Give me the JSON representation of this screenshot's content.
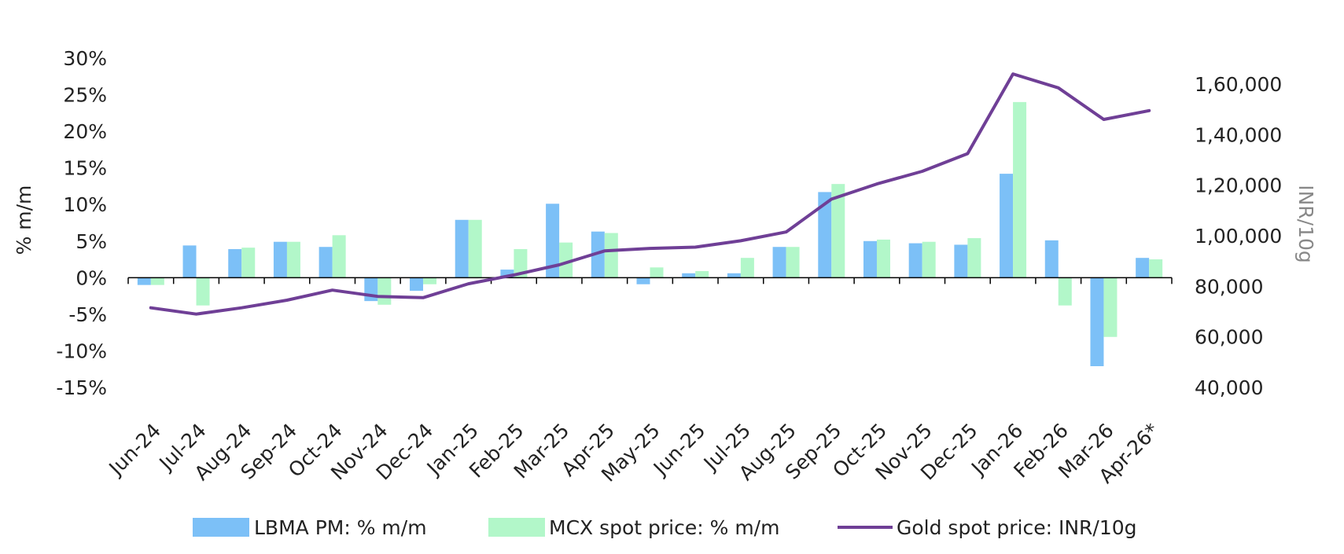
{
  "chart_data": {
    "type": "bar",
    "title": "",
    "categories": [
      "Jun-24",
      "Jul-24",
      "Aug-24",
      "Sep-24",
      "Oct-24",
      "Nov-24",
      "Dec-24",
      "Jan-25",
      "Feb-25",
      "Mar-25",
      "Apr-25",
      "May-25",
      "Jun-25",
      "Jul-25",
      "Aug-25",
      "Sep-25",
      "Oct-25",
      "Nov-25",
      "Dec-25",
      "Jan-26",
      "Feb-26",
      "Mar-26",
      "Apr-26*"
    ],
    "ylabel": "% m/m",
    "y2label": "INR/10g",
    "ylim": [
      -15,
      30
    ],
    "y2lim": [
      40000,
      170000
    ],
    "y_ticks": [
      "30%",
      "25%",
      "20%",
      "15%",
      "10%",
      "5%",
      "0%",
      "-5%",
      "-10%",
      "-15%"
    ],
    "y2_ticks": [
      "1,60,000",
      "1,40,000",
      "1,20,000",
      "1,00,000",
      "80,000",
      "60,000",
      "40,000"
    ],
    "grid": false,
    "legend_position": "bottom",
    "series": [
      {
        "name": "LBMA PM: % m/m",
        "type": "bar",
        "axis": "left",
        "color": "#7cc0f7",
        "values": [
          -1.0,
          4.4,
          3.9,
          4.9,
          4.2,
          -3.2,
          -1.8,
          7.9,
          1.1,
          10.1,
          6.3,
          -0.9,
          0.6,
          0.6,
          4.2,
          11.7,
          5.0,
          4.7,
          4.5,
          14.2,
          5.1,
          -12.1,
          2.7
        ]
      },
      {
        "name": "MCX spot price: % m/m",
        "type": "bar",
        "axis": "left",
        "color": "#b2f7c9",
        "values": [
          -1.0,
          -3.8,
          4.1,
          4.9,
          5.8,
          -3.7,
          -0.9,
          7.9,
          3.9,
          4.8,
          6.1,
          1.4,
          0.9,
          2.7,
          4.2,
          12.8,
          5.2,
          4.9,
          5.4,
          24.0,
          -3.8,
          -8.1,
          2.5
        ]
      },
      {
        "name": "Gold spot price: INR/10g",
        "type": "line",
        "axis": "right",
        "color": "#6f3f96",
        "values": [
          71500,
          69000,
          71500,
          74500,
          78500,
          76000,
          75500,
          81000,
          84500,
          88500,
          94000,
          95000,
          95500,
          98000,
          101500,
          114500,
          120500,
          125500,
          132500,
          164000,
          158500,
          146000,
          149500
        ]
      }
    ]
  }
}
